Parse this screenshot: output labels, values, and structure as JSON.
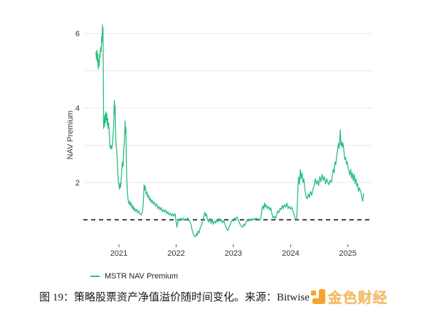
{
  "figure": {
    "caption": "图 19：策略股票资产净值溢价随时间变化。来源：Bitwise",
    "watermark": "金色财经"
  },
  "colors": {
    "line": "#29BE7F",
    "grid": "#EAEAEA",
    "dashed_line": "#111111",
    "axis_text": "#333333",
    "tick_mark": "#555555",
    "caption_text": "#1A1A1A",
    "watermark_orange": "#F7A329",
    "watermark_gold": "#F2BD6C"
  },
  "chart_data": {
    "type": "line",
    "title": "",
    "xlabel": "",
    "ylabel": "NAV Premium",
    "legend": [
      "MSTR NAV Premium"
    ],
    "legend_position": "bottom-left",
    "grid": "horizontal",
    "x_ticks": [
      2021,
      2022,
      2023,
      2024,
      2025
    ],
    "y_ticks_labeled": [
      2,
      4,
      6
    ],
    "y_gridlines": [
      2,
      3,
      4,
      5,
      6
    ],
    "dashed_baseline_y": 1,
    "xlim": [
      2020.39,
      2025.45
    ],
    "ylim": [
      0.36,
      6.46
    ],
    "series": [
      {
        "name": "MSTR NAV Premium",
        "points": [
          [
            2020.6,
            5.5
          ],
          [
            2020.607,
            5.32
          ],
          [
            2020.615,
            5.55
          ],
          [
            2020.622,
            5.25
          ],
          [
            2020.63,
            5.45
          ],
          [
            2020.64,
            5.05
          ],
          [
            2020.648,
            5.3
          ],
          [
            2020.655,
            5.12
          ],
          [
            2020.663,
            5.45
          ],
          [
            2020.67,
            5.35
          ],
          [
            2020.68,
            5.62
          ],
          [
            2020.69,
            5.5
          ],
          [
            2020.7,
            5.92
          ],
          [
            2020.706,
            5.78
          ],
          [
            2020.712,
            6.23
          ],
          [
            2020.717,
            6.02
          ],
          [
            2020.722,
            6.15
          ],
          [
            2020.728,
            4.8
          ],
          [
            2020.733,
            3.45
          ],
          [
            2020.74,
            3.75
          ],
          [
            2020.748,
            3.5
          ],
          [
            2020.756,
            3.82
          ],
          [
            2020.764,
            3.6
          ],
          [
            2020.772,
            3.9
          ],
          [
            2020.78,
            3.68
          ],
          [
            2020.788,
            3.85
          ],
          [
            2020.796,
            3.55
          ],
          [
            2020.804,
            3.72
          ],
          [
            2020.812,
            3.45
          ],
          [
            2020.82,
            3.6
          ],
          [
            2020.83,
            3.4
          ],
          [
            2020.84,
            3.05
          ],
          [
            2020.85,
            2.92
          ],
          [
            2020.86,
            3.0
          ],
          [
            2020.87,
            2.9
          ],
          [
            2020.88,
            2.96
          ],
          [
            2020.89,
            3.05
          ],
          [
            2020.9,
            3.3
          ],
          [
            2020.91,
            3.55
          ],
          [
            2020.92,
            4.2
          ],
          [
            2020.928,
            3.85
          ],
          [
            2020.935,
            4.05
          ],
          [
            2020.943,
            3.35
          ],
          [
            2020.951,
            3.0
          ],
          [
            2020.96,
            2.88
          ],
          [
            2020.97,
            2.6
          ],
          [
            2020.98,
            2.28
          ],
          [
            2020.99,
            2.05
          ],
          [
            2021.0,
            1.92
          ],
          [
            2021.01,
            1.82
          ],
          [
            2021.02,
            1.98
          ],
          [
            2021.03,
            1.88
          ],
          [
            2021.045,
            2.2
          ],
          [
            2021.06,
            2.55
          ],
          [
            2021.072,
            2.42
          ],
          [
            2021.085,
            2.9
          ],
          [
            2021.098,
            3.15
          ],
          [
            2021.108,
            3.65
          ],
          [
            2021.115,
            3.3
          ],
          [
            2021.122,
            3.48
          ],
          [
            2021.13,
            2.6
          ],
          [
            2021.14,
            2.0
          ],
          [
            2021.15,
            1.75
          ],
          [
            2021.16,
            1.55
          ],
          [
            2021.17,
            1.48
          ],
          [
            2021.18,
            1.42
          ],
          [
            2021.19,
            1.5
          ],
          [
            2021.2,
            1.38
          ],
          [
            2021.215,
            1.45
          ],
          [
            2021.23,
            1.3
          ],
          [
            2021.245,
            1.38
          ],
          [
            2021.26,
            1.25
          ],
          [
            2021.275,
            1.32
          ],
          [
            2021.29,
            1.22
          ],
          [
            2021.31,
            1.28
          ],
          [
            2021.33,
            1.18
          ],
          [
            2021.35,
            1.24
          ],
          [
            2021.37,
            1.15
          ],
          [
            2021.39,
            1.13
          ],
          [
            2021.41,
            1.2
          ],
          [
            2021.425,
            1.4
          ],
          [
            2021.44,
            1.94
          ],
          [
            2021.45,
            1.8
          ],
          [
            2021.46,
            1.9
          ],
          [
            2021.475,
            1.68
          ],
          [
            2021.49,
            1.75
          ],
          [
            2021.505,
            1.6
          ],
          [
            2021.52,
            1.66
          ],
          [
            2021.535,
            1.52
          ],
          [
            2021.55,
            1.58
          ],
          [
            2021.565,
            1.46
          ],
          [
            2021.58,
            1.53
          ],
          [
            2021.6,
            1.42
          ],
          [
            2021.62,
            1.48
          ],
          [
            2021.64,
            1.36
          ],
          [
            2021.66,
            1.43
          ],
          [
            2021.68,
            1.3
          ],
          [
            2021.7,
            1.36
          ],
          [
            2021.72,
            1.26
          ],
          [
            2021.74,
            1.33
          ],
          [
            2021.76,
            1.22
          ],
          [
            2021.78,
            1.28
          ],
          [
            2021.8,
            1.2
          ],
          [
            2021.82,
            1.26
          ],
          [
            2021.84,
            1.16
          ],
          [
            2021.86,
            1.22
          ],
          [
            2021.88,
            1.13
          ],
          [
            2021.9,
            1.18
          ],
          [
            2021.92,
            1.1
          ],
          [
            2021.94,
            1.16
          ],
          [
            2021.96,
            1.1
          ],
          [
            2021.98,
            1.17
          ],
          [
            2022.0,
            0.95
          ],
          [
            2022.012,
            0.8
          ],
          [
            2022.025,
            0.9
          ],
          [
            2022.04,
            1.02
          ],
          [
            2022.06,
            0.97
          ],
          [
            2022.08,
            1.04
          ],
          [
            2022.1,
            0.99
          ],
          [
            2022.12,
            1.05
          ],
          [
            2022.14,
            0.98
          ],
          [
            2022.16,
            1.03
          ],
          [
            2022.18,
            0.99
          ],
          [
            2022.2,
            1.05
          ],
          [
            2022.22,
            1.0
          ],
          [
            2022.24,
            0.96
          ],
          [
            2022.26,
            0.88
          ],
          [
            2022.28,
            0.72
          ],
          [
            2022.3,
            0.62
          ],
          [
            2022.32,
            0.56
          ],
          [
            2022.34,
            0.54
          ],
          [
            2022.355,
            0.64
          ],
          [
            2022.37,
            0.58
          ],
          [
            2022.385,
            0.7
          ],
          [
            2022.4,
            0.65
          ],
          [
            2022.42,
            0.78
          ],
          [
            2022.44,
            0.85
          ],
          [
            2022.46,
            0.95
          ],
          [
            2022.48,
            1.05
          ],
          [
            2022.5,
            1.2
          ],
          [
            2022.515,
            1.1
          ],
          [
            2022.53,
            1.16
          ],
          [
            2022.55,
            1.0
          ],
          [
            2022.57,
            0.94
          ],
          [
            2022.59,
            1.04
          ],
          [
            2022.61,
            0.9
          ],
          [
            2022.63,
            1.0
          ],
          [
            2022.65,
            0.88
          ],
          [
            2022.67,
            0.97
          ],
          [
            2022.69,
            0.91
          ],
          [
            2022.71,
            1.01
          ],
          [
            2022.73,
            0.94
          ],
          [
            2022.75,
            1.04
          ],
          [
            2022.77,
            0.96
          ],
          [
            2022.79,
            1.01
          ],
          [
            2022.81,
            0.92
          ],
          [
            2022.83,
            0.98
          ],
          [
            2022.85,
            0.9
          ],
          [
            2022.87,
            0.8
          ],
          [
            2022.89,
            0.74
          ],
          [
            2022.905,
            0.72
          ],
          [
            2022.92,
            0.78
          ],
          [
            2022.94,
            0.85
          ],
          [
            2022.96,
            0.94
          ],
          [
            2022.98,
            1.0
          ],
          [
            2023.0,
            0.96
          ],
          [
            2023.02,
            1.05
          ],
          [
            2023.04,
            1.0
          ],
          [
            2023.06,
            1.08
          ],
          [
            2023.08,
            1.02
          ],
          [
            2023.1,
            0.94
          ],
          [
            2023.12,
            0.87
          ],
          [
            2023.14,
            0.82
          ],
          [
            2023.16,
            0.8
          ],
          [
            2023.18,
            0.88
          ],
          [
            2023.2,
            0.84
          ],
          [
            2023.22,
            0.94
          ],
          [
            2023.24,
            1.0
          ],
          [
            2023.26,
            0.96
          ],
          [
            2023.28,
            1.02
          ],
          [
            2023.3,
            0.98
          ],
          [
            2023.32,
            1.03
          ],
          [
            2023.34,
            0.99
          ],
          [
            2023.36,
            1.04
          ],
          [
            2023.38,
            1.0
          ],
          [
            2023.4,
            1.05
          ],
          [
            2023.42,
            1.0
          ],
          [
            2023.44,
            1.03
          ],
          [
            2023.46,
            0.98
          ],
          [
            2023.48,
            1.05
          ],
          [
            2023.5,
            1.3
          ],
          [
            2023.515,
            1.38
          ],
          [
            2023.53,
            1.28
          ],
          [
            2023.545,
            1.45
          ],
          [
            2023.56,
            1.34
          ],
          [
            2023.575,
            1.4
          ],
          [
            2023.595,
            1.3
          ],
          [
            2023.615,
            1.36
          ],
          [
            2023.635,
            1.26
          ],
          [
            2023.655,
            1.32
          ],
          [
            2023.675,
            1.15
          ],
          [
            2023.695,
            1.05
          ],
          [
            2023.715,
            1.1
          ],
          [
            2023.735,
            1.03
          ],
          [
            2023.755,
            1.14
          ],
          [
            2023.775,
            1.24
          ],
          [
            2023.795,
            1.19
          ],
          [
            2023.815,
            1.31
          ],
          [
            2023.835,
            1.27
          ],
          [
            2023.855,
            1.39
          ],
          [
            2023.875,
            1.3
          ],
          [
            2023.895,
            1.41
          ],
          [
            2023.915,
            1.34
          ],
          [
            2023.935,
            1.45
          ],
          [
            2023.955,
            1.3
          ],
          [
            2023.975,
            1.36
          ],
          [
            2024.0,
            1.28
          ],
          [
            2024.02,
            1.34
          ],
          [
            2024.04,
            1.24
          ],
          [
            2024.06,
            1.14
          ],
          [
            2024.08,
            1.04
          ],
          [
            2024.1,
            0.98
          ],
          [
            2024.112,
            1.2
          ],
          [
            2024.125,
            1.75
          ],
          [
            2024.14,
            2.15
          ],
          [
            2024.155,
            1.95
          ],
          [
            2024.17,
            2.35
          ],
          [
            2024.185,
            2.1
          ],
          [
            2024.2,
            2.26
          ],
          [
            2024.215,
            2.0
          ],
          [
            2024.23,
            2.1
          ],
          [
            2024.25,
            1.8
          ],
          [
            2024.27,
            1.62
          ],
          [
            2024.29,
            1.56
          ],
          [
            2024.31,
            1.7
          ],
          [
            2024.33,
            1.6
          ],
          [
            2024.35,
            1.76
          ],
          [
            2024.37,
            1.66
          ],
          [
            2024.39,
            1.82
          ],
          [
            2024.41,
            1.9
          ],
          [
            2024.43,
            2.1
          ],
          [
            2024.45,
            1.95
          ],
          [
            2024.47,
            2.06
          ],
          [
            2024.49,
            1.92
          ],
          [
            2024.51,
            2.16
          ],
          [
            2024.53,
            2.02
          ],
          [
            2024.55,
            2.22
          ],
          [
            2024.57,
            2.06
          ],
          [
            2024.59,
            2.16
          ],
          [
            2024.61,
            1.96
          ],
          [
            2024.63,
            2.1
          ],
          [
            2024.65,
            2.0
          ],
          [
            2024.67,
            1.94
          ],
          [
            2024.69,
            2.06
          ],
          [
            2024.71,
            2.0
          ],
          [
            2024.73,
            2.2
          ],
          [
            2024.745,
            2.36
          ],
          [
            2024.76,
            2.26
          ],
          [
            2024.775,
            2.55
          ],
          [
            2024.79,
            2.48
          ],
          [
            2024.805,
            2.72
          ],
          [
            2024.82,
            2.88
          ],
          [
            2024.835,
            3.05
          ],
          [
            2024.848,
            2.92
          ],
          [
            2024.858,
            3.15
          ],
          [
            2024.868,
            3.42
          ],
          [
            2024.878,
            3.0
          ],
          [
            2024.89,
            3.1
          ],
          [
            2024.902,
            2.94
          ],
          [
            2024.915,
            3.06
          ],
          [
            2024.93,
            2.86
          ],
          [
            2024.945,
            2.62
          ],
          [
            2024.96,
            2.68
          ],
          [
            2024.975,
            2.5
          ],
          [
            2024.99,
            2.56
          ],
          [
            2025.005,
            2.38
          ],
          [
            2025.02,
            2.3
          ],
          [
            2025.035,
            2.2
          ],
          [
            2025.05,
            2.36
          ],
          [
            2025.065,
            2.12
          ],
          [
            2025.08,
            2.26
          ],
          [
            2025.095,
            2.05
          ],
          [
            2025.11,
            2.22
          ],
          [
            2025.125,
            1.98
          ],
          [
            2025.14,
            2.1
          ],
          [
            2025.155,
            1.9
          ],
          [
            2025.17,
            1.97
          ],
          [
            2025.185,
            1.76
          ],
          [
            2025.2,
            1.86
          ],
          [
            2025.215,
            1.8
          ],
          [
            2025.23,
            1.74
          ],
          [
            2025.245,
            1.58
          ],
          [
            2025.26,
            1.5
          ],
          [
            2025.275,
            1.7
          ]
        ]
      }
    ]
  }
}
